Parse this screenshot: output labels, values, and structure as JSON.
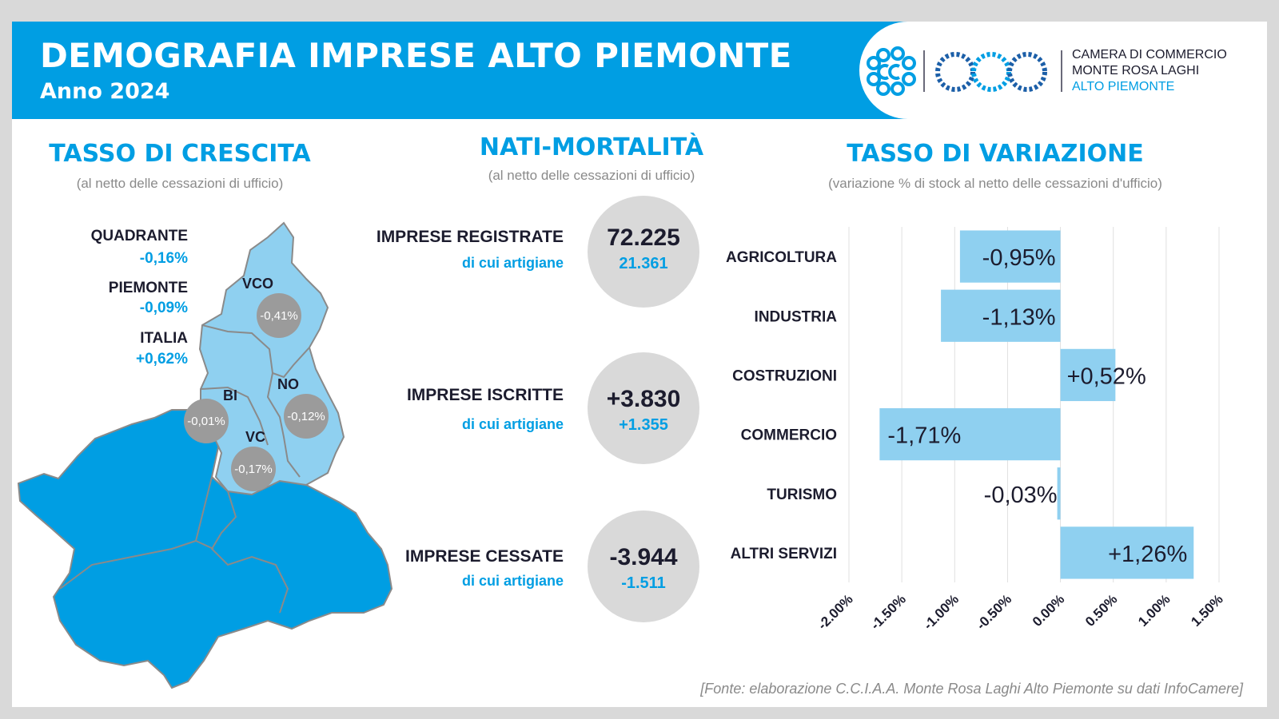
{
  "header": {
    "title": "DEMOGRAFIA IMPRESE ALTO PIEMONTE",
    "subtitle": "Anno 2024"
  },
  "logo": {
    "line1": "CAMERA DI COMMERCIO",
    "line2": "MONTE ROSA LAGHI",
    "line3": "ALTO PIEMONTE",
    "icons": [
      "chamber-emblem-icon",
      "chain-links-icon"
    ]
  },
  "growth": {
    "title": "TASSO DI CRESCITA",
    "subtitle": "(al netto delle cessazioni di ufficio)",
    "stats": [
      {
        "label": "QUADRANTE",
        "value": "-0,16%"
      },
      {
        "label": "PIEMONTE",
        "value": "-0,09%"
      },
      {
        "label": "ITALIA",
        "value": "+0,62%"
      }
    ],
    "provinces": [
      {
        "name": "VCO",
        "value": "-0,41%"
      },
      {
        "name": "BI",
        "value": "-0,01%"
      },
      {
        "name": "NO",
        "value": "-0,12%"
      },
      {
        "name": "VC",
        "value": "-0,17%"
      }
    ],
    "colors": {
      "quadrant": "#8fd0f0",
      "region": "#009ee3",
      "border": "#8a8a8a",
      "badge": "#9b9b9b"
    }
  },
  "natality": {
    "title": "NATI-MORTALITÀ",
    "subtitle": "(al netto delle cessazioni di ufficio)",
    "items": [
      {
        "label": "IMPRESE REGISTRATE",
        "sublabel": "di cui artigiane",
        "value": "72.225",
        "subvalue": "21.361"
      },
      {
        "label": "IMPRESE ISCRITTE",
        "sublabel": "di cui artigiane",
        "value": "+3.830",
        "subvalue": "+1.355"
      },
      {
        "label": "IMPRESE CESSATE",
        "sublabel": "di cui artigiane",
        "value": "-3.944",
        "subvalue": "-1.511"
      }
    ]
  },
  "variation": {
    "title": "TASSO DI VARIAZIONE",
    "subtitle": "(variazione % di stock al netto delle cessazioni d'ufficio)"
  },
  "chart_data": {
    "type": "bar",
    "orientation": "horizontal",
    "categories": [
      "AGRICOLTURA",
      "INDUSTRIA",
      "COSTRUZIONI",
      "COMMERCIO",
      "TURISMO",
      "ALTRI SERVIZI"
    ],
    "values": [
      -0.95,
      -1.13,
      0.52,
      -1.71,
      -0.03,
      1.26
    ],
    "data_labels": [
      "-0,95%",
      "-1,13%",
      "+0,52%",
      "-1,71%",
      "-0,03%",
      "+1,26%"
    ],
    "xlim": [
      -2.0,
      1.5
    ],
    "ticks": [
      -2.0,
      -1.5,
      -1.0,
      -0.5,
      0.0,
      0.5,
      1.0,
      1.5
    ],
    "tick_labels": [
      "-2.00%",
      "-1.50%",
      "-1.00%",
      "-0.50%",
      "0.00%",
      "0.50%",
      "1.00%",
      "1.50%"
    ],
    "grid": true,
    "bar_color": "#8fd0f0"
  },
  "source": "[Fonte: elaborazione C.C.I.A.A. Monte Rosa Laghi Alto Piemonte su dati InfoCamere]"
}
